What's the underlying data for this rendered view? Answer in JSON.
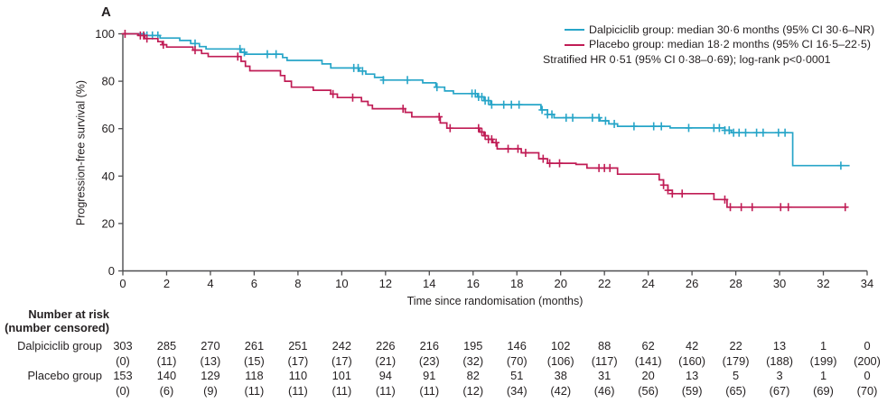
{
  "panel_label": "A",
  "legend": {
    "items": [
      {
        "label": "Dalpiciclib group: median 30·6 months (95% CI 30·6–NR)",
        "color": "#27A5C8"
      },
      {
        "label": "Placebo group: median 18·2 months (95% CI 16·5–22·5)",
        "color": "#C01C55"
      }
    ],
    "note": "Stratified HR 0·51 (95% CI 0·38–0·69); log-rank p<0·0001"
  },
  "chart_data": {
    "type": "line",
    "subtype": "kaplan-meier-step",
    "title": "",
    "xlabel": "Time since randomisation (months)",
    "ylabel": "Progression-free survival (%)",
    "xlim": [
      0,
      34
    ],
    "ylim": [
      0,
      100
    ],
    "x_ticks": [
      0,
      2,
      4,
      6,
      8,
      10,
      12,
      14,
      16,
      18,
      20,
      22,
      24,
      26,
      28,
      30,
      32,
      34
    ],
    "y_ticks": [
      0,
      20,
      40,
      60,
      80,
      100
    ],
    "grid": false,
    "legend_position": "top-right",
    "series": [
      {
        "name": "Dalpiciclib group",
        "color": "#27A5C8",
        "steps": [
          [
            0,
            100
          ],
          [
            1.0,
            99.3
          ],
          [
            1.7,
            98.2
          ],
          [
            2.6,
            97.2
          ],
          [
            3.1,
            95.9
          ],
          [
            3.5,
            94.6
          ],
          [
            3.8,
            93.6
          ],
          [
            5.4,
            92.2
          ],
          [
            5.6,
            91.4
          ],
          [
            7.3,
            90.0
          ],
          [
            7.5,
            88.8
          ],
          [
            9.1,
            87.3
          ],
          [
            9.5,
            85.6
          ],
          [
            10.8,
            84.3
          ],
          [
            11.1,
            83.0
          ],
          [
            11.5,
            81.6
          ],
          [
            11.9,
            80.5
          ],
          [
            13.7,
            79.3
          ],
          [
            14.3,
            77.5
          ],
          [
            14.7,
            75.9
          ],
          [
            15.1,
            74.8
          ],
          [
            16.2,
            73.4
          ],
          [
            16.5,
            71.8
          ],
          [
            16.8,
            70.1
          ],
          [
            19.1,
            67.9
          ],
          [
            19.4,
            66.0
          ],
          [
            19.7,
            64.6
          ],
          [
            21.8,
            63.3
          ],
          [
            22.2,
            62.0
          ],
          [
            22.6,
            61.0
          ],
          [
            25.0,
            60.3
          ],
          [
            27.5,
            59.3
          ],
          [
            27.8,
            58.3
          ],
          [
            30.6,
            44.4
          ]
        ],
        "end_time": 33.2,
        "censor_times": [
          1.1,
          1.35,
          1.6,
          3.3,
          5.35,
          5.55,
          6.6,
          7.0,
          10.55,
          10.75,
          10.95,
          11.9,
          13.0,
          14.35,
          15.95,
          16.1,
          16.25,
          16.4,
          16.55,
          16.7,
          16.85,
          17.4,
          17.75,
          18.1,
          19.15,
          19.4,
          19.6,
          20.25,
          20.55,
          21.45,
          21.75,
          22.05,
          22.45,
          23.35,
          24.25,
          24.6,
          25.85,
          27.0,
          27.25,
          27.5,
          27.7,
          27.9,
          28.15,
          28.45,
          28.95,
          29.25,
          29.95,
          30.25,
          32.8
        ]
      },
      {
        "name": "Placebo group",
        "color": "#C01C55",
        "steps": [
          [
            0,
            100
          ],
          [
            0.7,
            99.3
          ],
          [
            1.0,
            98.0
          ],
          [
            1.6,
            96.7
          ],
          [
            1.8,
            95.4
          ],
          [
            2.0,
            94.4
          ],
          [
            3.2,
            93.1
          ],
          [
            3.6,
            91.7
          ],
          [
            3.9,
            90.4
          ],
          [
            5.4,
            88.4
          ],
          [
            5.6,
            86.3
          ],
          [
            5.8,
            84.4
          ],
          [
            7.2,
            82.4
          ],
          [
            7.4,
            80.0
          ],
          [
            7.7,
            77.5
          ],
          [
            8.7,
            76.2
          ],
          [
            9.5,
            74.6
          ],
          [
            9.8,
            73.1
          ],
          [
            10.9,
            71.5
          ],
          [
            11.2,
            69.9
          ],
          [
            11.4,
            68.4
          ],
          [
            12.9,
            66.9
          ],
          [
            13.2,
            65.0
          ],
          [
            14.5,
            62.4
          ],
          [
            14.8,
            60.2
          ],
          [
            16.3,
            58.6
          ],
          [
            16.5,
            57.0
          ],
          [
            16.7,
            55.5
          ],
          [
            16.9,
            54.1
          ],
          [
            17.1,
            51.5
          ],
          [
            18.2,
            49.8
          ],
          [
            19.0,
            47.3
          ],
          [
            19.4,
            45.4
          ],
          [
            20.7,
            44.9
          ],
          [
            21.2,
            43.4
          ],
          [
            22.6,
            40.8
          ],
          [
            24.5,
            38.4
          ],
          [
            24.7,
            36.2
          ],
          [
            24.9,
            34.0
          ],
          [
            25.1,
            32.6
          ],
          [
            27.0,
            30.1
          ],
          [
            27.6,
            26.9
          ]
        ],
        "end_time": 33.1,
        "censor_times": [
          0.1,
          0.8,
          0.95,
          1.1,
          1.85,
          3.3,
          5.25,
          9.6,
          10.5,
          12.8,
          14.45,
          14.95,
          16.25,
          16.4,
          16.55,
          16.7,
          16.85,
          17.05,
          17.6,
          18.05,
          18.4,
          19.2,
          19.5,
          19.95,
          21.75,
          22.0,
          22.25,
          24.7,
          24.9,
          25.1,
          25.55,
          27.5,
          27.75,
          28.25,
          28.75,
          30.05,
          30.4,
          33.0
        ]
      }
    ]
  },
  "risk_table": {
    "header_line1": "Number at risk",
    "header_line2": "(number censored)",
    "time_points": [
      0,
      2,
      4,
      6,
      8,
      10,
      12,
      14,
      16,
      18,
      20,
      22,
      24,
      26,
      28,
      30,
      32,
      34
    ],
    "rows": [
      {
        "label": "Dalpiciclib group",
        "at_risk": [
          303,
          285,
          270,
          261,
          251,
          242,
          226,
          216,
          195,
          146,
          102,
          88,
          62,
          42,
          22,
          13,
          1,
          0
        ],
        "censored": [
          0,
          11,
          13,
          15,
          17,
          17,
          21,
          23,
          32,
          70,
          106,
          117,
          141,
          160,
          179,
          188,
          199,
          200
        ]
      },
      {
        "label": "Placebo group",
        "at_risk": [
          153,
          140,
          129,
          118,
          110,
          101,
          94,
          91,
          82,
          51,
          38,
          31,
          20,
          13,
          5,
          3,
          1,
          0
        ],
        "censored": [
          0,
          6,
          9,
          11,
          11,
          11,
          11,
          11,
          12,
          34,
          42,
          46,
          56,
          59,
          65,
          67,
          69,
          70
        ]
      }
    ]
  },
  "colors": {
    "axis": "#4D4D4F",
    "text": "#231F20"
  }
}
